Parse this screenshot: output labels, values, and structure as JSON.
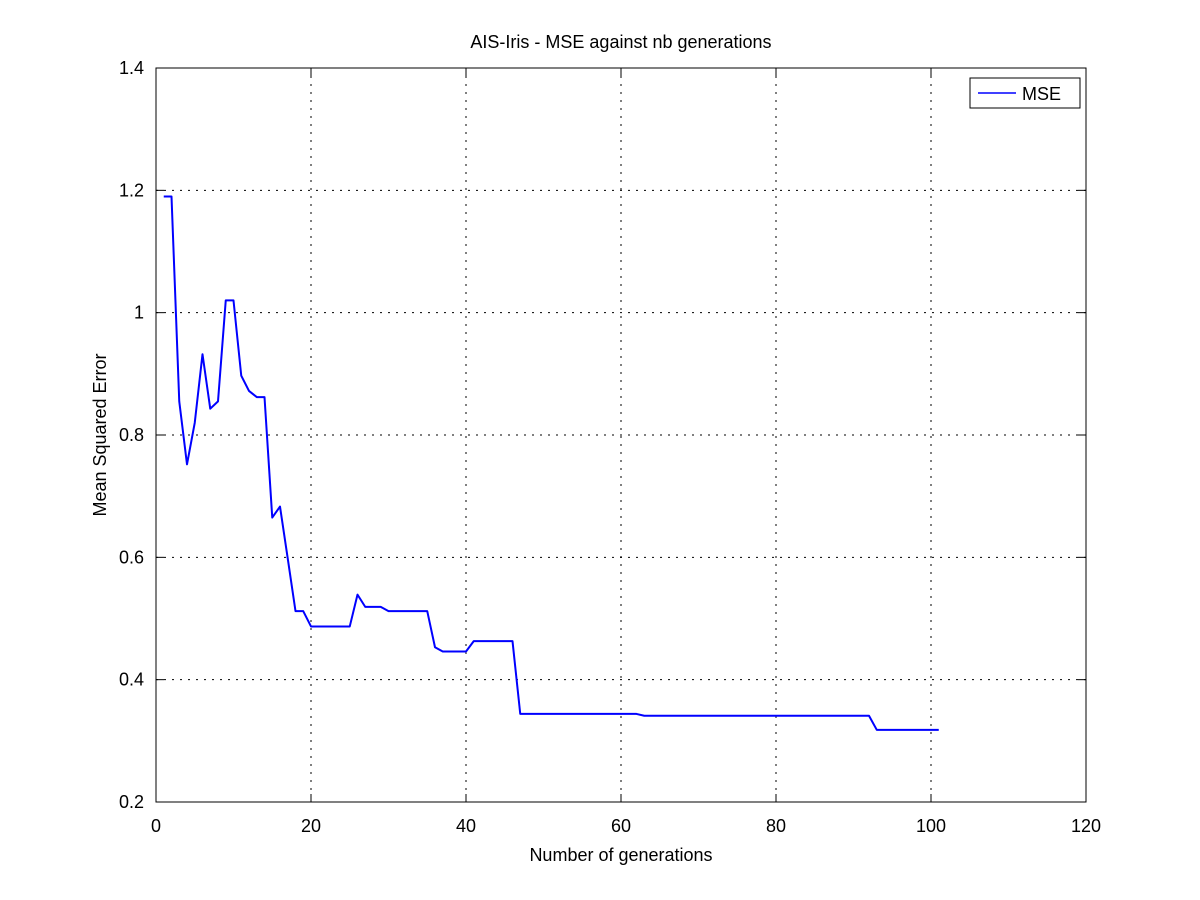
{
  "chart_data": {
    "type": "line",
    "title": "AIS-Iris - MSE against nb generations",
    "xlabel": "Number of generations",
    "ylabel": "Mean Squared Error",
    "xlim": [
      0,
      120
    ],
    "ylim": [
      0.2,
      1.4
    ],
    "xticks": [
      0,
      20,
      40,
      60,
      80,
      100,
      120
    ],
    "yticks": [
      0.2,
      0.4,
      0.6,
      0.8,
      1.0,
      1.2,
      1.4
    ],
    "xtick_labels": [
      "0",
      "20",
      "40",
      "60",
      "80",
      "100",
      "120"
    ],
    "ytick_labels": [
      "0.2",
      "0.4",
      "0.6",
      "0.8",
      "1",
      "1.2",
      "1.4"
    ],
    "grid": true,
    "legend_position": "top-right",
    "colors": {
      "MSE": "#0000ff"
    },
    "series": [
      {
        "name": "MSE",
        "x": [
          1,
          2,
          3,
          4,
          5,
          6,
          7,
          8,
          9,
          10,
          11,
          12,
          13,
          14,
          15,
          16,
          17,
          18,
          19,
          20,
          21,
          22,
          23,
          24,
          25,
          26,
          27,
          28,
          29,
          30,
          31,
          32,
          33,
          34,
          35,
          36,
          37,
          38,
          39,
          40,
          41,
          42,
          43,
          44,
          45,
          46,
          47,
          48,
          49,
          50,
          51,
          52,
          53,
          54,
          55,
          56,
          57,
          58,
          59,
          60,
          61,
          62,
          63,
          64,
          65,
          66,
          67,
          68,
          69,
          70,
          71,
          72,
          73,
          74,
          75,
          76,
          77,
          78,
          79,
          80,
          81,
          82,
          83,
          84,
          85,
          86,
          87,
          88,
          89,
          90,
          91,
          92,
          93,
          94,
          95,
          96,
          97,
          98,
          99,
          100,
          101
        ],
        "values": [
          1.19,
          1.19,
          0.855,
          0.752,
          0.82,
          0.932,
          0.843,
          0.855,
          1.02,
          1.02,
          0.897,
          0.872,
          0.862,
          0.862,
          0.665,
          0.683,
          0.598,
          0.512,
          0.512,
          0.487,
          0.487,
          0.487,
          0.487,
          0.487,
          0.487,
          0.539,
          0.519,
          0.519,
          0.519,
          0.512,
          0.512,
          0.512,
          0.512,
          0.512,
          0.512,
          0.453,
          0.446,
          0.446,
          0.446,
          0.446,
          0.463,
          0.463,
          0.463,
          0.463,
          0.463,
          0.463,
          0.344,
          0.344,
          0.344,
          0.344,
          0.344,
          0.344,
          0.344,
          0.344,
          0.344,
          0.344,
          0.344,
          0.344,
          0.344,
          0.344,
          0.344,
          0.344,
          0.341,
          0.341,
          0.341,
          0.341,
          0.341,
          0.341,
          0.341,
          0.341,
          0.341,
          0.341,
          0.341,
          0.341,
          0.341,
          0.341,
          0.341,
          0.341,
          0.341,
          0.341,
          0.341,
          0.341,
          0.341,
          0.341,
          0.341,
          0.341,
          0.341,
          0.341,
          0.341,
          0.341,
          0.341,
          0.341,
          0.318,
          0.318,
          0.318,
          0.318,
          0.318,
          0.318,
          0.318,
          0.318,
          0.318
        ]
      }
    ]
  }
}
